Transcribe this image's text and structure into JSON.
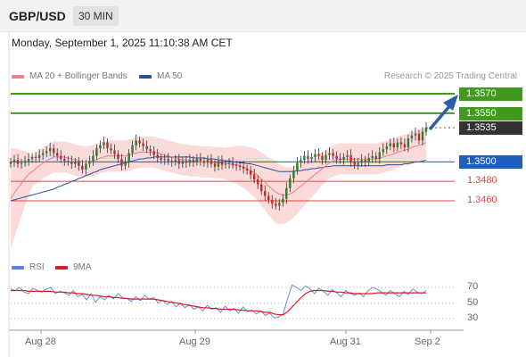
{
  "header": {
    "symbol": "GBP/USD",
    "interval": "30 MIN"
  },
  "datetime": "Monday, September 1, 2025 11:10:38 AM CET",
  "legend": {
    "ma20": "MA 20 + Bollinger Bands",
    "ma50": "MA 50",
    "credit": "Research © 2025 Trading Central",
    "rsi": "RSI",
    "rsi_ma": "9MA"
  },
  "colors": {
    "ma20": "#f08080",
    "ma50": "#2a4f9e",
    "green_level": "#3f9a1f",
    "blue_level": "#1f5fbf",
    "dark_level": "#333333",
    "red_level": "#d94b4b",
    "band_fill": "#fbdada",
    "bull": "#2d7d2d",
    "bear": "#c62828"
  },
  "chart_data": [
    {
      "type": "line",
      "levels": [
        {
          "value": 1.357,
          "label": "1.3570",
          "kind": "resistance",
          "color": "#3f9a1f"
        },
        {
          "value": 1.355,
          "label": "1.3550",
          "kind": "resistance",
          "color": "#3f9a1f"
        },
        {
          "value": 1.3535,
          "label": "1.3535",
          "kind": "last-price",
          "color": "#333333"
        },
        {
          "value": 1.35,
          "label": "1.3500",
          "kind": "pivot",
          "color": "#1f5fbf"
        },
        {
          "value": 1.348,
          "label": "1.3480",
          "kind": "support",
          "color": "#d94b4b"
        },
        {
          "value": 1.346,
          "label": "1.3460",
          "kind": "support",
          "color": "#d94b4b"
        }
      ],
      "x_ticks": [
        "Aug 28",
        "Aug 29",
        "Aug 31",
        "Sep 2"
      ],
      "close": [
        1.35,
        1.3502,
        1.3498,
        1.3499,
        1.3501,
        1.3503,
        1.3505,
        1.3504,
        1.3507,
        1.3509,
        1.3511,
        1.3514,
        1.3509,
        1.3506,
        1.3503,
        1.3501,
        1.35,
        1.3498,
        1.35,
        1.3496,
        1.3492,
        1.3498,
        1.3501,
        1.3506,
        1.3514,
        1.3517,
        1.352,
        1.3514,
        1.3512,
        1.3508,
        1.3503,
        1.3496,
        1.3499,
        1.3509,
        1.3517,
        1.3522,
        1.3519,
        1.3516,
        1.3513,
        1.3511,
        1.3507,
        1.3504,
        1.3502,
        1.3503,
        1.3501,
        1.35,
        1.3502,
        1.3498,
        1.3501,
        1.3499,
        1.3502,
        1.35,
        1.3503,
        1.3501,
        1.3499,
        1.3502,
        1.3498,
        1.3495,
        1.3501,
        1.3497,
        1.3498,
        1.3499,
        1.3497,
        1.3496,
        1.3495,
        1.3493,
        1.3491,
        1.3487,
        1.3482,
        1.3477,
        1.347,
        1.3465,
        1.3461,
        1.3457,
        1.3455,
        1.3458,
        1.3462,
        1.3473,
        1.3483,
        1.3491,
        1.3499,
        1.3502,
        1.3506,
        1.3503,
        1.3505,
        1.3508,
        1.3506,
        1.3502,
        1.3507,
        1.3509,
        1.3506,
        1.3503,
        1.3502,
        1.3505,
        1.3507,
        1.35,
        1.3497,
        1.3499,
        1.3502,
        1.35,
        1.3504,
        1.3506,
        1.3503,
        1.351,
        1.3513,
        1.3516,
        1.3519,
        1.3515,
        1.352,
        1.3518,
        1.3515,
        1.3524,
        1.3527,
        1.3529,
        1.3522,
        1.3531,
        1.3535
      ],
      "ma20": [
        1.3462,
        1.3468,
        1.3473,
        1.3478,
        1.3483,
        1.3487,
        1.349,
        1.3493,
        1.3496,
        1.3499,
        1.3501,
        1.3503,
        1.3505,
        1.3505,
        1.3505,
        1.3505,
        1.3504,
        1.3503,
        1.3502,
        1.3501,
        1.35,
        1.35,
        1.35,
        1.3501,
        1.3502,
        1.3504,
        1.3505,
        1.3506,
        1.3506,
        1.3506,
        1.3506,
        1.3506,
        1.3506,
        1.3507,
        1.3508,
        1.3509,
        1.351,
        1.351,
        1.351,
        1.351,
        1.351,
        1.3509,
        1.3508,
        1.3507,
        1.3506,
        1.3505,
        1.3504,
        1.3503,
        1.3502,
        1.3502,
        1.3501,
        1.3501,
        1.3501,
        1.35,
        1.35,
        1.35,
        1.35,
        1.3499,
        1.3499,
        1.3499,
        1.3498,
        1.3498,
        1.3497,
        1.3497,
        1.3496,
        1.3495,
        1.3493,
        1.3491,
        1.3489,
        1.3486,
        1.3482,
        1.3479,
        1.3475,
        1.3472,
        1.3469,
        1.3467,
        1.3466,
        1.3466,
        1.3467,
        1.3469,
        1.3472,
        1.3475,
        1.3478,
        1.3481,
        1.3484,
        1.3487,
        1.349,
        1.3493,
        1.3496,
        1.3499,
        1.3501,
        1.3502,
        1.3503,
        1.3503,
        1.3503,
        1.3503,
        1.3503,
        1.3503,
        1.3503,
        1.3503,
        1.3503,
        1.3503,
        1.3503,
        1.3504,
        1.3505,
        1.3506,
        1.3507,
        1.3508,
        1.351,
        1.3511,
        1.3512,
        1.3513,
        1.3515,
        1.3516,
        1.3517,
        1.3518,
        1.352
      ],
      "ma50": [
        1.346,
        1.3461,
        1.3462,
        1.3463,
        1.3464,
        1.3465,
        1.3466,
        1.3467,
        1.3468,
        1.3469,
        1.347,
        1.3471,
        1.3472,
        1.3474,
        1.3475,
        1.3477,
        1.3478,
        1.348,
        1.3481,
        1.3483,
        1.3484,
        1.3486,
        1.3487,
        1.3489,
        1.349,
        1.3492,
        1.3493,
        1.3494,
        1.3495,
        1.3496,
        1.3497,
        1.3498,
        1.3499,
        1.35,
        1.3501,
        1.3502,
        1.3503,
        1.3503,
        1.3504,
        1.3504,
        1.3505,
        1.3505,
        1.3505,
        1.3505,
        1.3505,
        1.3505,
        1.3505,
        1.3505,
        1.3505,
        1.3505,
        1.3505,
        1.3504,
        1.3504,
        1.3504,
        1.3504,
        1.3503,
        1.3503,
        1.3503,
        1.3502,
        1.3502,
        1.3501,
        1.3501,
        1.35,
        1.35,
        1.3499,
        1.3499,
        1.3498,
        1.3498,
        1.3497,
        1.3496,
        1.3495,
        1.3494,
        1.3493,
        1.3492,
        1.3491,
        1.349,
        1.349,
        1.349,
        1.349,
        1.349,
        1.3491,
        1.3491,
        1.3492,
        1.3492,
        1.3493,
        1.3493,
        1.3494,
        1.3494,
        1.3495,
        1.3495,
        1.3496,
        1.3496,
        1.3496,
        1.3496,
        1.3496,
        1.3496,
        1.3496,
        1.3496,
        1.3496,
        1.3496,
        1.3496,
        1.3496,
        1.3496,
        1.3496,
        1.3496,
        1.3497,
        1.3497,
        1.3497,
        1.3497,
        1.3497,
        1.3498,
        1.3498,
        1.3499,
        1.35,
        1.35,
        1.3501,
        1.3502
      ]
    },
    {
      "type": "line",
      "name": "RSI",
      "y_ticks": [
        70,
        50,
        30
      ],
      "rsi": [
        68,
        66,
        70,
        64,
        62,
        69,
        66,
        64,
        68,
        70,
        62,
        65,
        63,
        60,
        66,
        58,
        61,
        54,
        62,
        51,
        58,
        54,
        60,
        55,
        62,
        57,
        56,
        52,
        58,
        53,
        60,
        55,
        57,
        50,
        54,
        48,
        52,
        45,
        50,
        44,
        48,
        42,
        45,
        40,
        47,
        42,
        44,
        38,
        46,
        40,
        43,
        37,
        45,
        39,
        41,
        36,
        40,
        34,
        37,
        31,
        32,
        36,
        56,
        73,
        70,
        66,
        72,
        68,
        62,
        69,
        65,
        60,
        67,
        63,
        58,
        66,
        62,
        60,
        63,
        58,
        66,
        70,
        68,
        64,
        60,
        66,
        62,
        58,
        65,
        61,
        68,
        64,
        62,
        66
      ],
      "rsi_ma": [
        66,
        66,
        66,
        66,
        65,
        65,
        65,
        65,
        65,
        65,
        64,
        64,
        64,
        63,
        63,
        62,
        62,
        61,
        60,
        60,
        59,
        58,
        58,
        57,
        57,
        56,
        56,
        55,
        55,
        55,
        55,
        55,
        55,
        54,
        53,
        52,
        51,
        50,
        49,
        48,
        47,
        46,
        45,
        44,
        44,
        43,
        43,
        42,
        42,
        42,
        42,
        41,
        41,
        40,
        40,
        40,
        39,
        38,
        38,
        36,
        35,
        35,
        39,
        45,
        51,
        57,
        62,
        65,
        66,
        66,
        66,
        65,
        65,
        64,
        64,
        63,
        63,
        62,
        62,
        62,
        62,
        62,
        63,
        63,
        63,
        63,
        63,
        63,
        63,
        63,
        63,
        63,
        63,
        63
      ]
    }
  ]
}
